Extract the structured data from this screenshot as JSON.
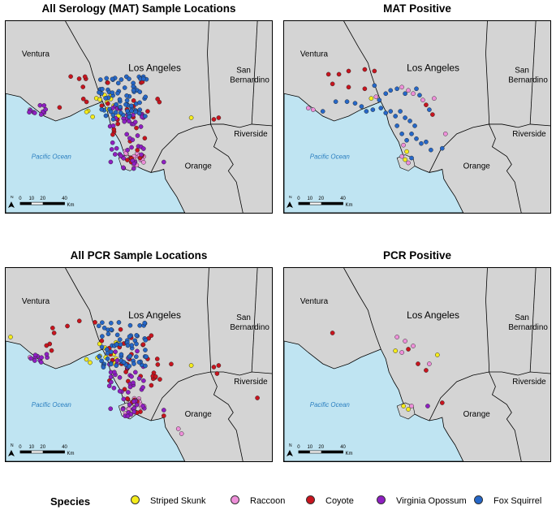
{
  "panels": [
    {
      "title": "All Serology (MAT) Sample Locations",
      "set": "mat_all"
    },
    {
      "title": "MAT Positive",
      "set": "mat_pos"
    },
    {
      "title": "All PCR Sample Locations",
      "set": "pcr_all"
    },
    {
      "title": "PCR Positive",
      "set": "pcr_pos"
    }
  ],
  "map_labels": {
    "ventura": "Ventura",
    "los_angeles": "Los Angeles",
    "san": "San",
    "bernardino": "Bernardino",
    "orange": "Orange",
    "riverside": "Riverside",
    "ocean": "Pacific Ocean"
  },
  "scale_bar": {
    "ticks": [
      "0",
      "10",
      "20",
      "40"
    ],
    "unit": "Km",
    "north": "N"
  },
  "colors": {
    "land": "#d4d4d4",
    "ocean": "#bfe4f2",
    "ocean_label": "#2b7fc0"
  },
  "legend": {
    "title": "Species",
    "items": [
      {
        "label": "Striped Skunk",
        "color": "#f5ec1b"
      },
      {
        "label": "Raccoon",
        "color": "#ee8fd9"
      },
      {
        "label": "Coyote",
        "color": "#c8141e"
      },
      {
        "label": "Virginia Opossum",
        "color": "#8f1fc2"
      },
      {
        "label": "Fox Squirrel",
        "color": "#2567c8"
      }
    ]
  }
}
